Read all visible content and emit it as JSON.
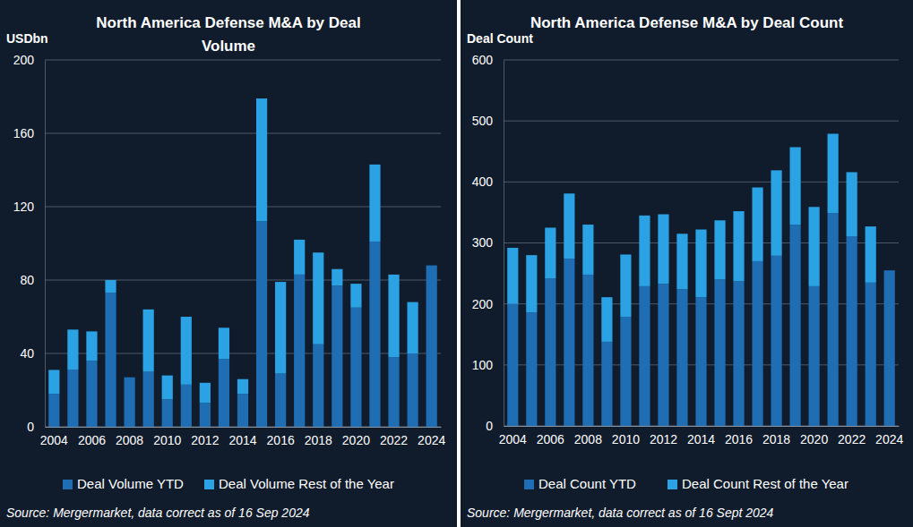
{
  "chart_data": [
    {
      "type": "bar",
      "stacked": true,
      "grid": true,
      "legend": "bottom",
      "title": "North America Defense M&A by Deal Volume",
      "y_label": "USDbn",
      "annotation": "Source: Mergermarket, data correct as of 16 Sep 2024",
      "categories": [
        "2004",
        null,
        "2006",
        null,
        "2008",
        null,
        "2010",
        null,
        "2012",
        null,
        "2014",
        null,
        "2016",
        null,
        "2018",
        null,
        "2020",
        null,
        "2022",
        null,
        "2024"
      ],
      "series": [
        {
          "name": "Deal Volume YTD",
          "color": "#1f6db3",
          "values": [
            18,
            31,
            36,
            73,
            27,
            30,
            15,
            23,
            13,
            37,
            18,
            112,
            29,
            83,
            45,
            77,
            65,
            101,
            38,
            40,
            88
          ]
        },
        {
          "name": "Deal Volume Rest of the Year",
          "color": "#2aa2e4",
          "values": [
            13,
            22,
            16,
            7,
            0,
            34,
            13,
            37,
            11,
            17,
            8,
            67,
            50,
            19,
            50,
            9,
            13,
            42,
            45,
            28,
            0
          ]
        }
      ],
      "ylim": [
        0,
        200
      ],
      "yticks": [
        0,
        40,
        80,
        120,
        160,
        200
      ]
    },
    {
      "type": "bar",
      "stacked": true,
      "grid": true,
      "legend": "bottom",
      "title": "North America Defense M&A by Deal Count",
      "y_label": "Deal Count",
      "annotation": "Source: Mergermarket, data correct as of 16 Sept 2024",
      "categories": [
        "2004",
        null,
        "2006",
        null,
        "2008",
        null,
        "2010",
        null,
        "2012",
        null,
        "2014",
        null,
        "2016",
        null,
        "2018",
        null,
        "2020",
        null,
        "2022",
        null,
        "2024"
      ],
      "series": [
        {
          "name": "Deal Count YTD",
          "color": "#1f6db3",
          "values": [
            200,
            186,
            242,
            274,
            248,
            138,
            179,
            229,
            233,
            224,
            211,
            240,
            237,
            270,
            279,
            330,
            229,
            349,
            311,
            235,
            255
          ]
        },
        {
          "name": "Deal Count Rest of the Year",
          "color": "#2aa2e4",
          "values": [
            92,
            94,
            83,
            107,
            82,
            73,
            102,
            116,
            114,
            91,
            111,
            97,
            115,
            121,
            140,
            127,
            130,
            130,
            105,
            92,
            0
          ]
        }
      ],
      "ylim": [
        0,
        600
      ],
      "yticks": [
        0,
        100,
        200,
        300,
        400,
        500,
        600
      ]
    }
  ]
}
